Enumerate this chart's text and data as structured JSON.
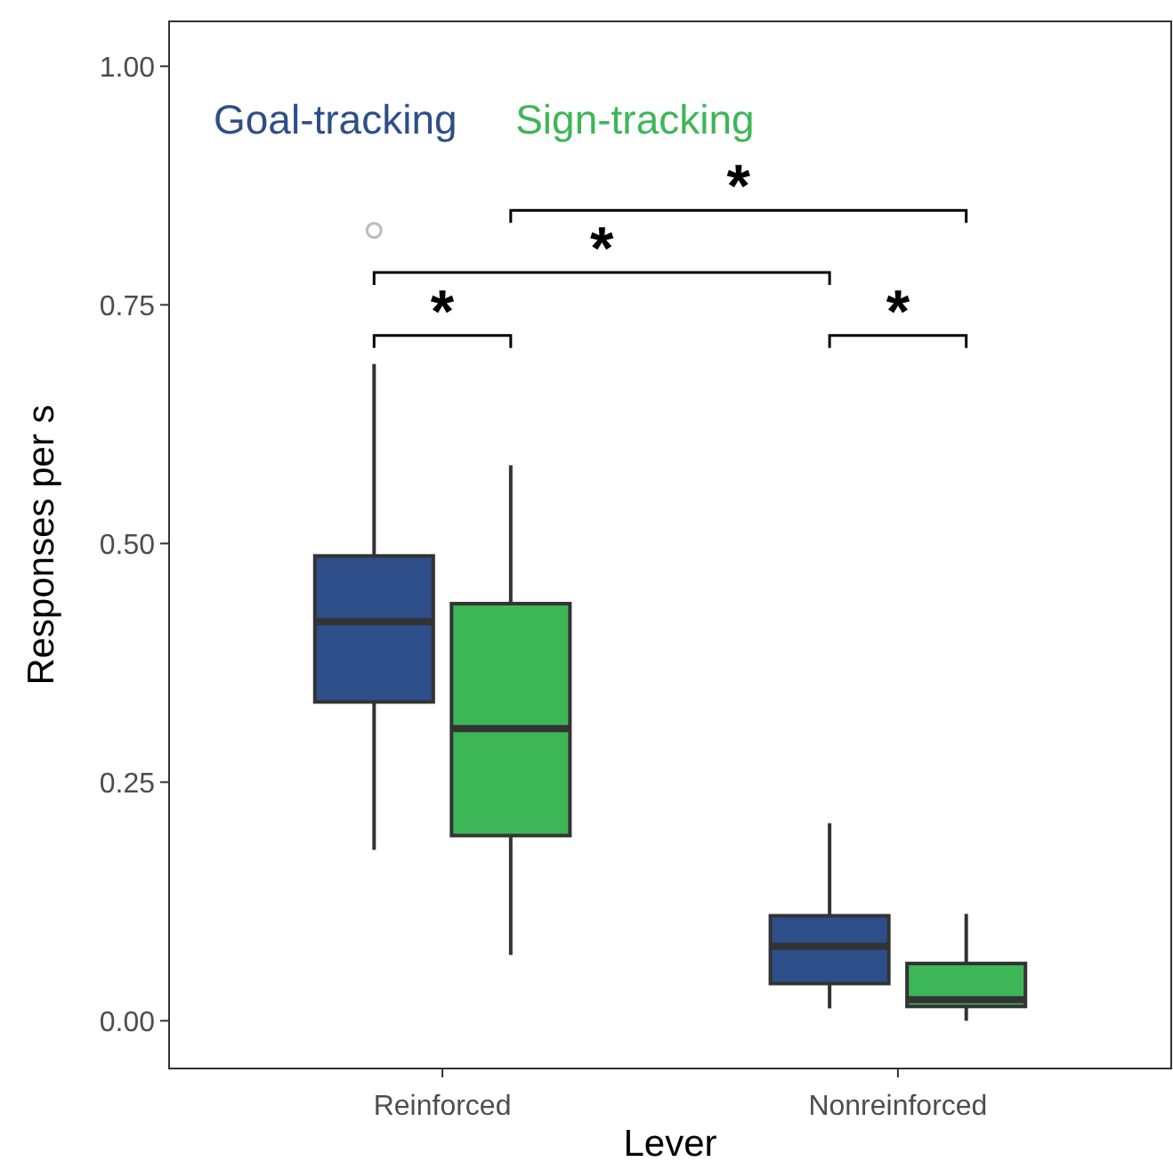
{
  "chart_data": {
    "type": "box",
    "xlabel": "Lever",
    "ylabel": "Responses per s",
    "categories": [
      "Reinforced",
      "Nonreinforced"
    ],
    "ylim": [
      -0.05,
      1.047
    ],
    "yticks": [
      {
        "value": 0,
        "label": "0.00"
      },
      {
        "value": 0.25,
        "label": "0.25"
      },
      {
        "value": 0.5,
        "label": "0.50"
      },
      {
        "value": 0.75,
        "label": "0.75"
      },
      {
        "value": 1,
        "label": "1.00"
      }
    ],
    "grid": false,
    "legend": "top left",
    "series": [
      {
        "name": "Goal-tracking",
        "color": "#2d4e89",
        "boxes": [
          {
            "low": 0.179,
            "q1": 0.334,
            "median": 0.418,
            "q3": 0.487,
            "high": 0.688,
            "outliers": [
              0.828
            ]
          },
          {
            "low": 0.013,
            "q1": 0.039,
            "median": 0.078,
            "q3": 0.11,
            "high": 0.207
          }
        ]
      },
      {
        "name": "Sign-tracking",
        "color": "#3db657",
        "boxes": [
          {
            "low": 0.069,
            "q1": 0.194,
            "median": 0.306,
            "q3": 0.437,
            "high": 0.582
          },
          {
            "low": 0,
            "q1": 0.015,
            "median": 0.022,
            "q3": 0.06,
            "high": 0.112
          }
        ]
      }
    ],
    "annotations": [
      "*",
      "*",
      "*",
      "*"
    ]
  }
}
